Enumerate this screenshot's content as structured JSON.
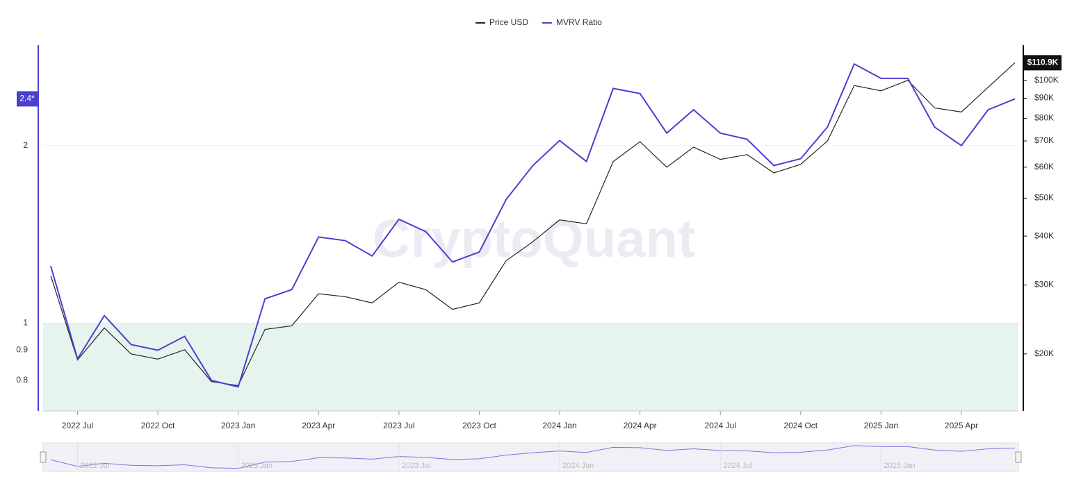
{
  "chart_data": {
    "type": "line",
    "watermark": "CryptoQuant",
    "x": [
      "2022-06",
      "2022-07",
      "2022-08",
      "2022-09",
      "2022-10",
      "2022-11",
      "2022-12",
      "2023-01",
      "2023-02",
      "2023-03",
      "2023-04",
      "2023-05",
      "2023-06",
      "2023-07",
      "2023-08",
      "2023-09",
      "2023-10",
      "2023-11",
      "2023-12",
      "2024-01",
      "2024-02",
      "2024-03",
      "2024-04",
      "2024-05",
      "2024-06",
      "2024-07",
      "2024-08",
      "2024-09",
      "2024-10",
      "2024-11",
      "2024-12",
      "2025-01",
      "2025-02",
      "2025-03",
      "2025-04",
      "2025-05",
      "2025-06"
    ],
    "xticks": [
      {
        "value": "2022-07",
        "label": "2022 Jul"
      },
      {
        "value": "2022-10",
        "label": "2022 Oct"
      },
      {
        "value": "2023-01",
        "label": "2023 Jan"
      },
      {
        "value": "2023-04",
        "label": "2023 Apr"
      },
      {
        "value": "2023-07",
        "label": "2023 Jul"
      },
      {
        "value": "2023-10",
        "label": "2023 Oct"
      },
      {
        "value": "2024-01",
        "label": "2024 Jan"
      },
      {
        "value": "2024-04",
        "label": "2024 Apr"
      },
      {
        "value": "2024-07",
        "label": "2024 Jul"
      },
      {
        "value": "2024-10",
        "label": "2024 Oct"
      },
      {
        "value": "2025-01",
        "label": "2025 Jan"
      },
      {
        "value": "2025-04",
        "label": "2025 Apr"
      }
    ],
    "series": [
      {
        "name": "Price USD",
        "color": "#222222",
        "axis": "y2",
        "last_label": "$110.9K",
        "values": [
          31700,
          19300,
          23300,
          20000,
          19400,
          20500,
          17000,
          16600,
          23100,
          23600,
          28500,
          28000,
          27000,
          30500,
          29200,
          26000,
          27000,
          34600,
          38700,
          44000,
          43000,
          62000,
          69700,
          60000,
          67500,
          62800,
          64600,
          58000,
          61000,
          70000,
          97000,
          94000,
          100000,
          85000,
          83000,
          96000,
          110900
        ]
      },
      {
        "name": "MVRV Ratio",
        "color": "#4b3fd0",
        "axis": "y",
        "last_label": "2.4*",
        "values": [
          1.25,
          0.87,
          1.03,
          0.92,
          0.9,
          0.95,
          0.8,
          0.78,
          1.1,
          1.14,
          1.4,
          1.38,
          1.3,
          1.5,
          1.43,
          1.27,
          1.32,
          1.62,
          1.85,
          2.04,
          1.88,
          2.5,
          2.45,
          2.1,
          2.3,
          2.1,
          2.05,
          1.85,
          1.9,
          2.15,
          2.75,
          2.6,
          2.6,
          2.15,
          2.0,
          2.3,
          2.4
        ]
      }
    ],
    "log_scale": true,
    "ylim": [
      0.71,
      2.96
    ],
    "yticks": [
      0.8,
      0.9,
      1,
      2
    ],
    "y2lim": [
      14300,
      123000
    ],
    "y2ticks": [
      {
        "value": 20000,
        "label": "$20K"
      },
      {
        "value": 30000,
        "label": "$30K"
      },
      {
        "value": 40000,
        "label": "$40K"
      },
      {
        "value": 50000,
        "label": "$50K"
      },
      {
        "value": 60000,
        "label": "$60K"
      },
      {
        "value": 70000,
        "label": "$70K"
      },
      {
        "value": 80000,
        "label": "$80K"
      },
      {
        "value": 90000,
        "label": "$90K"
      },
      {
        "value": 100000,
        "label": "$100K"
      }
    ],
    "threshold": 1,
    "threshold_color": "#6aa86a",
    "grid": true,
    "legend": "top"
  }
}
